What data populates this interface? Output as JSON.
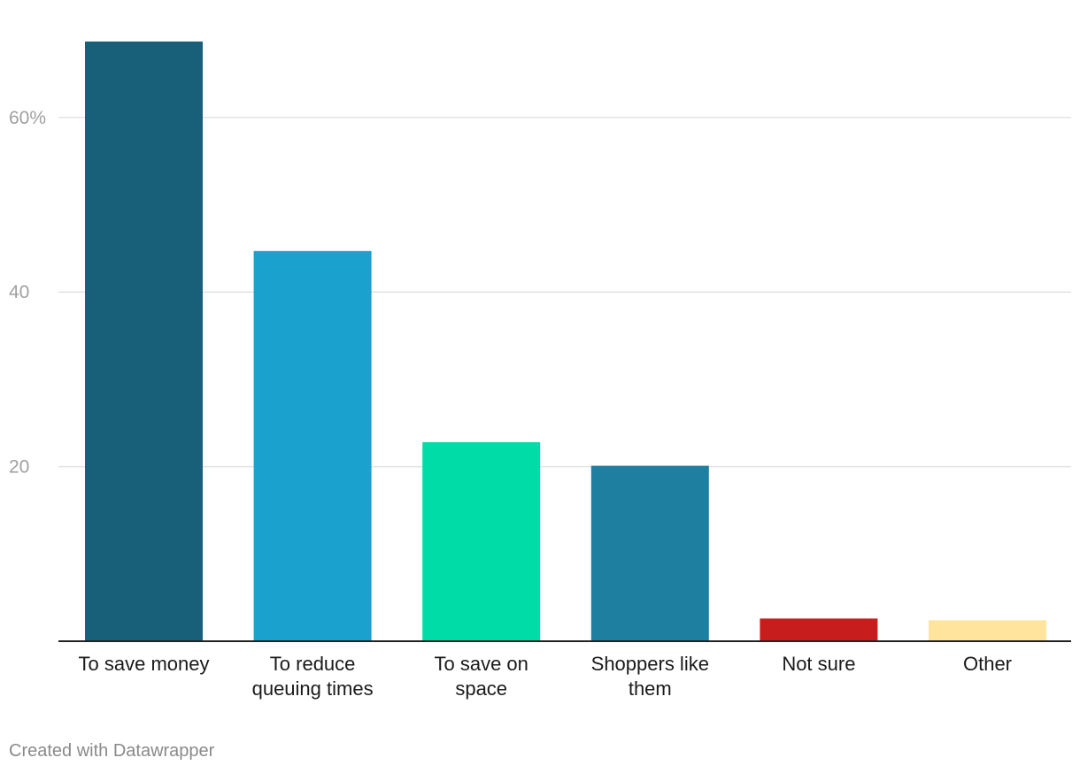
{
  "chart_data": {
    "type": "bar",
    "categories": [
      [
        "To save money"
      ],
      [
        "To reduce",
        "queuing times"
      ],
      [
        "To save on",
        "space"
      ],
      [
        "Shoppers like",
        "them"
      ],
      [
        "Not sure"
      ],
      [
        "Other"
      ]
    ],
    "values": [
      68.7,
      44.7,
      22.8,
      20.1,
      2.6,
      2.4
    ],
    "colors": [
      "#18607a",
      "#1aa1cd",
      "#00dca8",
      "#1f7fa0",
      "#c71e1d",
      "#fee49d"
    ],
    "yticks": [
      {
        "value": 20,
        "label": "20"
      },
      {
        "value": 40,
        "label": "40"
      },
      {
        "value": 60,
        "label": "60%"
      }
    ],
    "ylim": [
      0,
      70
    ],
    "grid": true,
    "title": "",
    "xlabel": "",
    "ylabel": ""
  },
  "footer": {
    "credit": "Created with Datawrapper"
  }
}
